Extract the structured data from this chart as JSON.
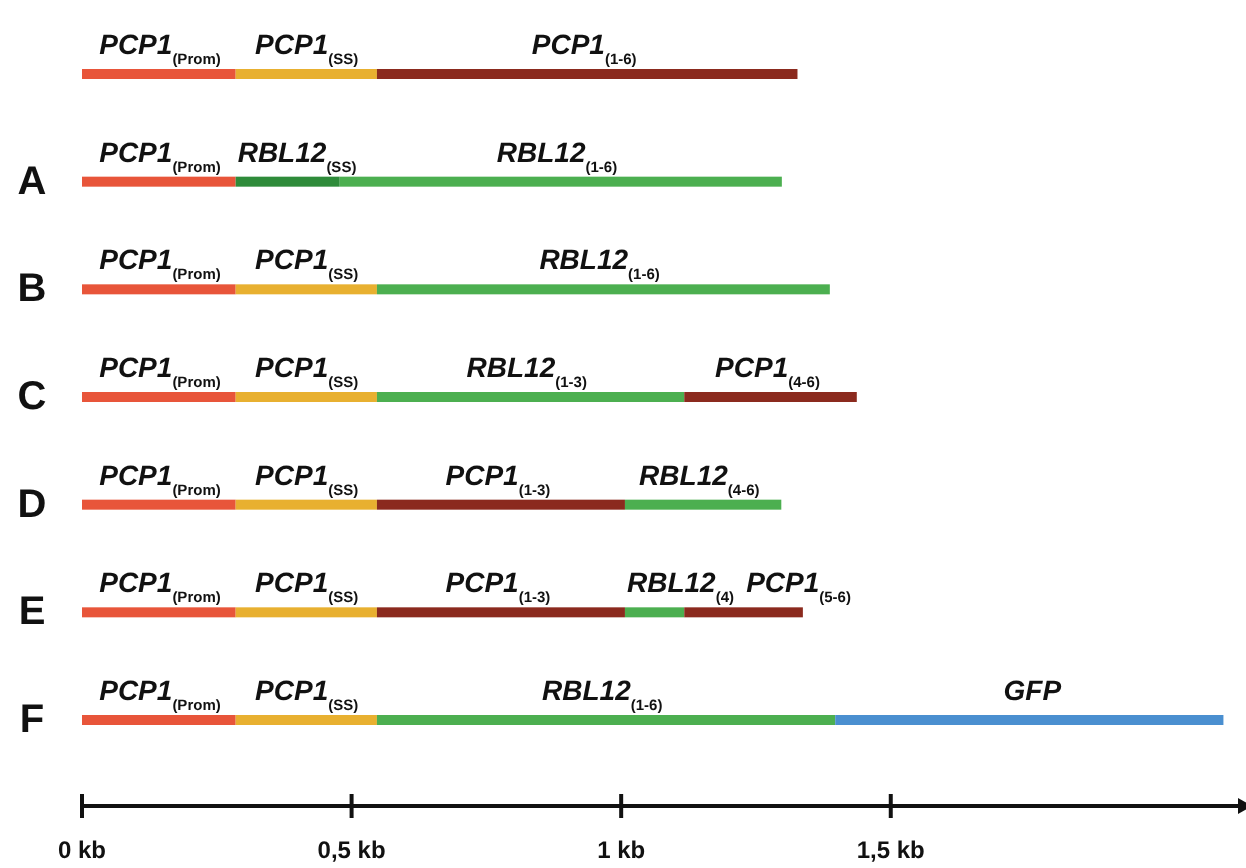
{
  "chart_data": {
    "type": "bar",
    "orientation": "horizontal",
    "stacked": true,
    "categories": [
      null,
      "A",
      "B",
      "C",
      "D",
      "E",
      "F"
    ],
    "xlim": [
      0,
      2.17
    ],
    "xticks": [
      {
        "value": 0,
        "label": "0 kb"
      },
      {
        "value": 0.5,
        "label": "0,5 kb"
      },
      {
        "value": 1,
        "label": "1 kb"
      },
      {
        "value": 1.5,
        "label": "1,5 kb"
      }
    ],
    "series": [
      {
        "values": [
          0.285,
          0.285,
          0.285,
          0.285,
          0.285,
          0.285,
          0.285
        ],
        "colors": [
          "#e8553a",
          "#e8553a",
          "#e8553a",
          "#e8553a",
          "#e8553a",
          "#e8553a",
          "#e8553a"
        ],
        "value_labels": [
          "PCP1$_{(Prom)}$",
          "PCP1$_{(Prom)}$",
          "PCP1$_{(Prom)}$",
          "PCP1$_{(Prom)}$",
          "PCP1$_{(Prom)}$",
          "PCP1$_{(Prom)}$",
          "PCP1$_{(Prom)}$"
        ]
      },
      {
        "values": [
          0.262,
          0.193,
          0.262,
          0.262,
          0.262,
          0.262,
          0.262
        ],
        "colors": [
          "#e8b030",
          "#2e8b3a",
          "#e8b030",
          "#e8b030",
          "#e8b030",
          "#e8b030",
          "#e8b030"
        ],
        "value_labels": [
          "PCP1$_{(SS)}$",
          "RBL12$_{(SS)}$",
          "PCP1$_{(SS)}$",
          "PCP1$_{(SS)}$",
          "PCP1$_{(SS)}$",
          "PCP1$_{(SS)}$",
          "PCP1$_{(SS)}$"
        ]
      },
      {
        "values": [
          0.78,
          0.82,
          0.84,
          0.57,
          0.46,
          0.46,
          0.85
        ],
        "colors": [
          "#8b2a1e",
          "#4caf50",
          "#4caf50",
          "#4caf50",
          "#8b2a1e",
          "#8b2a1e",
          "#4caf50"
        ],
        "value_labels": [
          "PCP1$_{(1-6)}$",
          "RBL12$_{(1-6)}$",
          "RBL12$_{(1-6)}$",
          "RBL12$_{(1-3)}$",
          "PCP1$_{(1-3)}$",
          "PCP1$_{(1-3)}$",
          "RBL12$_{(1-6)}$"
        ]
      },
      {
        "values": [
          null,
          null,
          null,
          0.32,
          0.29,
          0.11,
          0.72
        ],
        "colors": [
          null,
          null,
          null,
          "#8b2a1e",
          "#4caf50",
          "#4caf50",
          "#4a8fd0"
        ],
        "value_labels": [
          null,
          null,
          null,
          "PCP1$_{(4-6)}$",
          "RBL12$_{(4-6)}$",
          "RBL12$_{(4)}$",
          "GFP"
        ]
      },
      {
        "values": [
          null,
          null,
          null,
          null,
          null,
          0.22,
          null
        ],
        "colors": [
          null,
          null,
          null,
          null,
          null,
          "#8b2a1e",
          null
        ],
        "value_labels": [
          null,
          null,
          null,
          null,
          null,
          "PCP1$_{(5-6)}$",
          null
        ]
      }
    ]
  }
}
